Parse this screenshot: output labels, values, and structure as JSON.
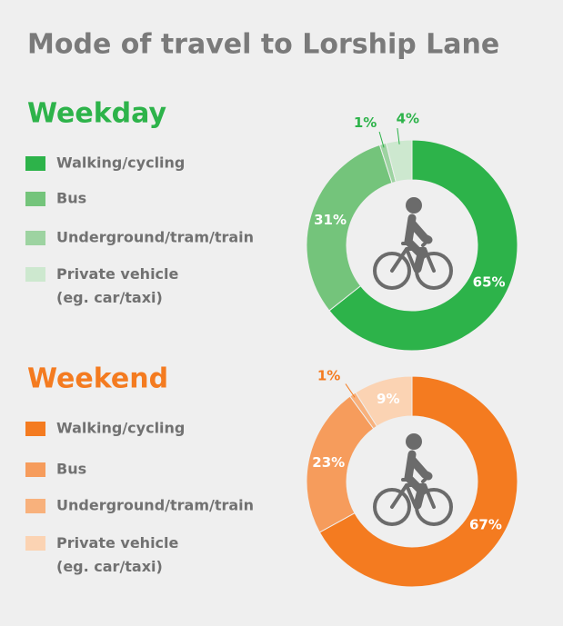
{
  "title": "Mode of travel to Lorship Lane",
  "chart_data": [
    {
      "type": "donut",
      "title": "Weekday",
      "categories": [
        "Walking/cycling",
        "Bus",
        "Underground/tram/train",
        "Private vehicle\n(eg. car/taxi)"
      ],
      "values": [
        65,
        31,
        1,
        4
      ],
      "value_labels": [
        "65%",
        "31%",
        "1%",
        "4%"
      ],
      "colors": [
        "#2db34a",
        "#74c47b",
        "#9dd3a1",
        "#cde8cf"
      ],
      "title_color": "#2db34a"
    },
    {
      "type": "donut",
      "title": "Weekend",
      "categories": [
        "Walking/cycling",
        "Bus",
        "Underground/tram/train",
        "Private vehicle\n(eg. car/taxi)"
      ],
      "values": [
        67,
        23,
        1,
        9
      ],
      "value_labels": [
        "67%",
        "23%",
        "1%",
        "9%"
      ],
      "colors": [
        "#f47b20",
        "#f69c5c",
        "#f8b17c",
        "#fbd3b3"
      ],
      "title_color": "#f47b20"
    }
  ]
}
